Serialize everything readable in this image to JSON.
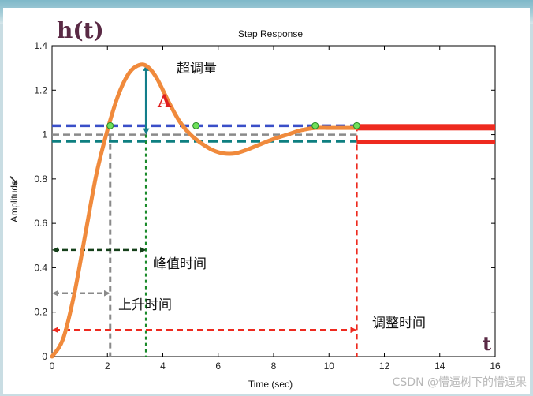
{
  "chart_data": {
    "type": "line",
    "title": "Step Response",
    "xlabel": "Time (sec)",
    "ylabel": "Amplitude",
    "xlim": [
      0,
      16
    ],
    "ylim": [
      0,
      1.4
    ],
    "x_ticks": [
      "0",
      "2",
      "4",
      "6",
      "8",
      "10",
      "12",
      "14",
      "16"
    ],
    "y_ticks": [
      "0",
      "0.2",
      "0.4",
      "0.6",
      "0.8",
      "1",
      "1.2",
      "1.4"
    ],
    "grid": false,
    "series": [
      {
        "color": "#f08a3c",
        "x": [
          0,
          0.4,
          0.8,
          1.2,
          1.6,
          2.0,
          2.4,
          2.8,
          3.2,
          3.5,
          3.8,
          4.2,
          4.6,
          5.0,
          5.4,
          5.8,
          6.2,
          6.6,
          7.0,
          7.5,
          8.0,
          8.5,
          9.0,
          9.5,
          10.0,
          10.5,
          11.0
        ],
        "y": [
          0,
          0.08,
          0.28,
          0.55,
          0.82,
          1.02,
          1.18,
          1.28,
          1.315,
          1.3,
          1.25,
          1.15,
          1.06,
          1.0,
          0.96,
          0.93,
          0.915,
          0.915,
          0.93,
          0.955,
          0.98,
          1.0,
          1.02,
          1.03,
          1.03,
          1.03,
          1.03
        ]
      }
    ],
    "reference_lines": {
      "final_value": 1.0,
      "upper_band": 1.04,
      "lower_band": 0.97,
      "rise_time": 2.1,
      "peak_time": 3.4,
      "settling_time": 11.0,
      "peak_value": 1.315
    },
    "band_markers_x": [
      2.1,
      5.2,
      9.5,
      11.0
    ],
    "colors": {
      "response": "#f08a3c",
      "upper_band": "#3a4fc8",
      "lower_band": "#0e7f80",
      "final_value": "#8a8a8a",
      "rise_time": "#8a8a8a",
      "peak_time": "#1a8a2a",
      "settling": "#ee2a1f",
      "overshoot_arrow": "#127e8a",
      "peak_time_arrow": "#15401a",
      "steady_band": "#ee2a1f"
    },
    "annotations": {
      "y_axis_label": "h(t)",
      "x_axis_label": "t",
      "overshoot": "超调量",
      "overshoot_letter": "A",
      "peak_time": "峰值时间",
      "rise_time": "上升时间",
      "settling_time": "调整时间"
    }
  },
  "watermark": "CSDN @懵逼树下的懵逼果"
}
